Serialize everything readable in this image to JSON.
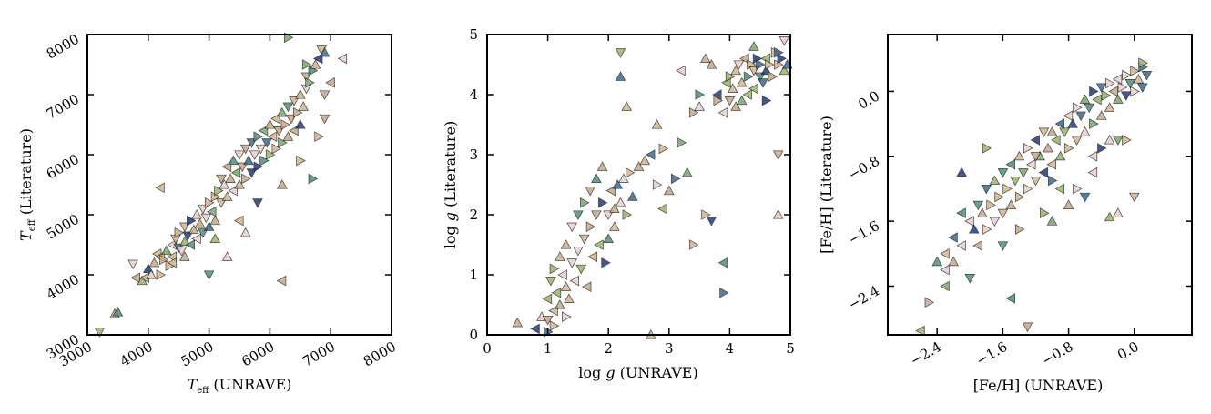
{
  "palette": [
    "#d2b48c",
    "#c7a986",
    "#e8cfc8",
    "#9bb56b",
    "#7aa86a",
    "#4e8f7a",
    "#3a6a8f",
    "#223a78"
  ],
  "chart_data": [
    {
      "type": "scatter",
      "xlabel": "T_eff (UNRAVE)",
      "ylabel": "T_eff (Literature)",
      "xlim": [
        3000,
        8000
      ],
      "ylim": [
        3000,
        8000
      ],
      "xticks": [
        3000,
        4000,
        5000,
        6000,
        7000,
        8000
      ],
      "yticks": [
        3000,
        4000,
        5000,
        6000,
        7000,
        8000
      ],
      "xtick_labels": [
        "3000",
        "4000",
        "5000",
        "6000",
        "7000",
        "8000"
      ],
      "ytick_labels": [
        "3000",
        "4000",
        "5000",
        "6000",
        "7000",
        "8000"
      ],
      "marker": "triangle",
      "points": [
        [
          3200,
          3050
        ],
        [
          3450,
          3350
        ],
        [
          3500,
          3380
        ],
        [
          3750,
          4180
        ],
        [
          3800,
          3950
        ],
        [
          3900,
          3900
        ],
        [
          3950,
          3950
        ],
        [
          4000,
          4100
        ],
        [
          4050,
          4000
        ],
        [
          4100,
          4200
        ],
        [
          4150,
          4350
        ],
        [
          4200,
          4000
        ],
        [
          4200,
          4300
        ],
        [
          4250,
          4250
        ],
        [
          4300,
          4400
        ],
        [
          4350,
          4150
        ],
        [
          4400,
          4500
        ],
        [
          4400,
          4300
        ],
        [
          4450,
          4600
        ],
        [
          4500,
          4450
        ],
        [
          4500,
          4700
        ],
        [
          4550,
          4400
        ],
        [
          4600,
          4800
        ],
        [
          4600,
          4550
        ],
        [
          4650,
          4650
        ],
        [
          4700,
          4900
        ],
        [
          4700,
          4500
        ],
        [
          4750,
          4750
        ],
        [
          4800,
          5000
        ],
        [
          4800,
          4600
        ],
        [
          4850,
          4850
        ],
        [
          4900,
          5100
        ],
        [
          4900,
          4700
        ],
        [
          4950,
          4950
        ],
        [
          5000,
          5200
        ],
        [
          5000,
          4800
        ],
        [
          5050,
          5050
        ],
        [
          5100,
          5300
        ],
        [
          5100,
          4900
        ],
        [
          5150,
          5400
        ],
        [
          5200,
          5200
        ],
        [
          5200,
          5600
        ],
        [
          5250,
          5500
        ],
        [
          5300,
          5300
        ],
        [
          5300,
          5800
        ],
        [
          5350,
          5600
        ],
        [
          5400,
          5900
        ],
        [
          5400,
          5400
        ],
        [
          5450,
          5700
        ],
        [
          5500,
          6000
        ],
        [
          5500,
          5500
        ],
        [
          5550,
          5800
        ],
        [
          5600,
          6100
        ],
        [
          5600,
          5600
        ],
        [
          5650,
          5900
        ],
        [
          5700,
          6200
        ],
        [
          5700,
          5700
        ],
        [
          5750,
          6000
        ],
        [
          5800,
          6300
        ],
        [
          5800,
          5800
        ],
        [
          5850,
          6100
        ],
        [
          5900,
          6400
        ],
        [
          5900,
          5900
        ],
        [
          5950,
          6200
        ],
        [
          6000,
          6500
        ],
        [
          6000,
          6000
        ],
        [
          6050,
          6300
        ],
        [
          6100,
          6600
        ],
        [
          6100,
          6100
        ],
        [
          6150,
          6400
        ],
        [
          6200,
          6700
        ],
        [
          6200,
          6200
        ],
        [
          6250,
          6500
        ],
        [
          6300,
          6800
        ],
        [
          6300,
          6300
        ],
        [
          6350,
          6600
        ],
        [
          6400,
          6900
        ],
        [
          6400,
          6400
        ],
        [
          6450,
          6700
        ],
        [
          6500,
          7000
        ],
        [
          6500,
          6500
        ],
        [
          6550,
          6800
        ],
        [
          6600,
          7100
        ],
        [
          6600,
          7300
        ],
        [
          6650,
          7200
        ],
        [
          6700,
          7400
        ],
        [
          6750,
          7500
        ],
        [
          6800,
          7600
        ],
        [
          6850,
          7750
        ],
        [
          6900,
          7700
        ],
        [
          6300,
          7950
        ],
        [
          7200,
          7600
        ],
        [
          6600,
          7500
        ],
        [
          5000,
          4000
        ],
        [
          5600,
          4700
        ],
        [
          6200,
          3900
        ],
        [
          4200,
          5450
        ],
        [
          5300,
          4300
        ],
        [
          6700,
          5600
        ],
        [
          6800,
          6300
        ],
        [
          6500,
          5900
        ],
        [
          6200,
          5500
        ],
        [
          5800,
          5200
        ],
        [
          5500,
          4900
        ],
        [
          6900,
          6600
        ],
        [
          6900,
          7000
        ],
        [
          7000,
          7200
        ],
        [
          4400,
          4200
        ],
        [
          4600,
          4300
        ],
        [
          5100,
          4600
        ]
      ]
    },
    {
      "type": "scatter",
      "xlabel": "log g (UNRAVE)",
      "ylabel": "log g (Literature)",
      "xlim": [
        0,
        5
      ],
      "ylim": [
        0,
        5
      ],
      "xticks": [
        0,
        1,
        2,
        3,
        4,
        5
      ],
      "yticks": [
        0,
        1,
        2,
        3,
        4,
        5
      ],
      "xtick_labels": [
        "0",
        "1",
        "2",
        "3",
        "4",
        "5"
      ],
      "ytick_labels": [
        "0",
        "1",
        "2",
        "3",
        "4",
        "5"
      ],
      "marker": "triangle",
      "points": [
        [
          0.5,
          0.2
        ],
        [
          0.8,
          0.1
        ],
        [
          0.9,
          0.3
        ],
        [
          1.0,
          0.05
        ],
        [
          1.0,
          0.6
        ],
        [
          1.05,
          0.9
        ],
        [
          1.1,
          0.4
        ],
        [
          1.1,
          1.1
        ],
        [
          1.15,
          0.7
        ],
        [
          1.2,
          1.3
        ],
        [
          1.2,
          0.5
        ],
        [
          1.25,
          1.0
        ],
        [
          1.3,
          0.8
        ],
        [
          1.3,
          1.5
        ],
        [
          1.35,
          0.6
        ],
        [
          1.4,
          1.2
        ],
        [
          1.4,
          1.8
        ],
        [
          1.45,
          0.9
        ],
        [
          1.5,
          1.4
        ],
        [
          1.5,
          2.0
        ],
        [
          1.55,
          1.1
        ],
        [
          1.6,
          1.6
        ],
        [
          1.6,
          2.2
        ],
        [
          1.65,
          0.8
        ],
        [
          1.7,
          1.8
        ],
        [
          1.7,
          2.4
        ],
        [
          1.75,
          1.3
        ],
        [
          1.8,
          2.0
        ],
        [
          1.8,
          2.6
        ],
        [
          1.85,
          1.5
        ],
        [
          1.9,
          2.2
        ],
        [
          1.9,
          2.8
        ],
        [
          1.95,
          1.2
        ],
        [
          2.0,
          2.0
        ],
        [
          2.0,
          1.6
        ],
        [
          2.05,
          2.4
        ],
        [
          2.1,
          2.1
        ],
        [
          2.1,
          1.8
        ],
        [
          2.15,
          2.5
        ],
        [
          2.2,
          2.2
        ],
        [
          2.2,
          4.3
        ],
        [
          2.2,
          4.7
        ],
        [
          2.25,
          2.6
        ],
        [
          2.3,
          2.0
        ],
        [
          2.3,
          3.8
        ],
        [
          2.35,
          2.7
        ],
        [
          2.4,
          2.3
        ],
        [
          2.5,
          2.8
        ],
        [
          2.6,
          2.9
        ],
        [
          2.7,
          3.0
        ],
        [
          2.8,
          2.5
        ],
        [
          2.9,
          2.1
        ],
        [
          3.0,
          2.4
        ],
        [
          3.1,
          2.6
        ],
        [
          3.2,
          3.2
        ],
        [
          3.3,
          2.7
        ],
        [
          3.4,
          3.7
        ],
        [
          3.5,
          3.8
        ],
        [
          3.6,
          2.0
        ],
        [
          3.7,
          1.9
        ],
        [
          3.8,
          3.9
        ],
        [
          3.8,
          4.0
        ],
        [
          3.9,
          3.7
        ],
        [
          3.9,
          0.7
        ],
        [
          3.95,
          4.2
        ],
        [
          4.0,
          4.3
        ],
        [
          4.0,
          3.9
        ],
        [
          4.05,
          4.1
        ],
        [
          4.1,
          4.4
        ],
        [
          4.1,
          3.8
        ],
        [
          4.15,
          4.5
        ],
        [
          4.2,
          4.2
        ],
        [
          4.2,
          3.9
        ],
        [
          4.25,
          4.6
        ],
        [
          4.3,
          4.3
        ],
        [
          4.3,
          4.0
        ],
        [
          4.35,
          4.5
        ],
        [
          4.4,
          4.4
        ],
        [
          4.4,
          4.1
        ],
        [
          4.45,
          4.6
        ],
        [
          4.5,
          4.3
        ],
        [
          4.5,
          4.5
        ],
        [
          4.55,
          4.2
        ],
        [
          4.6,
          4.6
        ],
        [
          4.6,
          4.4
        ],
        [
          4.65,
          4.5
        ],
        [
          4.7,
          4.3
        ],
        [
          4.75,
          4.7
        ],
        [
          4.8,
          4.5
        ],
        [
          4.85,
          4.6
        ],
        [
          4.9,
          4.9
        ],
        [
          4.9,
          4.4
        ],
        [
          4.95,
          4.5
        ],
        [
          3.7,
          4.5
        ],
        [
          3.6,
          4.6
        ],
        [
          3.5,
          4.0
        ],
        [
          2.9,
          3.1
        ],
        [
          2.8,
          3.5
        ],
        [
          4.8,
          3.0
        ],
        [
          4.8,
          2.0
        ],
        [
          1.0,
          0.25
        ],
        [
          1.1,
          0.15
        ],
        [
          1.3,
          0.3
        ],
        [
          2.7,
          0.0
        ],
        [
          3.9,
          1.2
        ],
        [
          3.4,
          1.5
        ],
        [
          3.2,
          4.4
        ],
        [
          4.8,
          4.7
        ],
        [
          4.4,
          4.8
        ],
        [
          4.6,
          3.9
        ]
      ]
    },
    {
      "type": "scatter",
      "xlabel": "[Fe/H] (UNRAVE)",
      "ylabel": "[Fe/H] (Literature)",
      "xlim": [
        -3.0,
        0.7
      ],
      "ylim": [
        -3.0,
        0.7
      ],
      "xticks": [
        -2.4,
        -1.6,
        -0.8,
        0.0
      ],
      "yticks": [
        -2.4,
        -1.6,
        -0.8,
        0.0
      ],
      "xtick_labels": [
        "−2.4",
        "−1.6",
        "−0.8",
        "0.0"
      ],
      "ytick_labels": [
        "−2.4",
        "−1.6",
        "−0.8",
        "0.0"
      ],
      "marker": "triangle",
      "points": [
        [
          -2.6,
          -2.95
        ],
        [
          -2.5,
          -2.6
        ],
        [
          -2.3,
          -2.2
        ],
        [
          -2.3,
          -2.0
        ],
        [
          -2.2,
          -2.1
        ],
        [
          -2.2,
          -1.8
        ],
        [
          -2.1,
          -1.9
        ],
        [
          -2.1,
          -1.5
        ],
        [
          -2.0,
          -1.6
        ],
        [
          -2.0,
          -2.3
        ],
        [
          -1.95,
          -1.7
        ],
        [
          -1.9,
          -1.4
        ],
        [
          -1.9,
          -1.9
        ],
        [
          -1.85,
          -1.5
        ],
        [
          -1.8,
          -1.2
        ],
        [
          -1.8,
          -1.7
        ],
        [
          -1.75,
          -1.4
        ],
        [
          -1.7,
          -1.1
        ],
        [
          -1.7,
          -1.6
        ],
        [
          -1.65,
          -1.3
        ],
        [
          -1.6,
          -1.0
        ],
        [
          -1.6,
          -1.5
        ],
        [
          -1.55,
          -1.2
        ],
        [
          -1.5,
          -0.9
        ],
        [
          -1.5,
          -1.4
        ],
        [
          -1.45,
          -1.1
        ],
        [
          -1.4,
          -0.8
        ],
        [
          -1.4,
          -1.3
        ],
        [
          -1.35,
          -1.0
        ],
        [
          -1.3,
          -0.7
        ],
        [
          -1.3,
          -1.2
        ],
        [
          -1.25,
          -0.9
        ],
        [
          -1.2,
          -0.6
        ],
        [
          -1.2,
          -1.1
        ],
        [
          -1.15,
          -0.8
        ],
        [
          -1.1,
          -0.5
        ],
        [
          -1.1,
          -1.0
        ],
        [
          -1.05,
          -0.7
        ],
        [
          -1.0,
          -0.5
        ],
        [
          -1.0,
          -0.9
        ],
        [
          -0.95,
          -0.6
        ],
        [
          -0.9,
          -0.4
        ],
        [
          -0.9,
          -0.8
        ],
        [
          -0.85,
          -0.5
        ],
        [
          -0.8,
          -0.3
        ],
        [
          -0.8,
          -0.7
        ],
        [
          -0.75,
          -0.4
        ],
        [
          -0.7,
          -0.2
        ],
        [
          -0.7,
          -0.6
        ],
        [
          -0.65,
          -0.3
        ],
        [
          -0.6,
          -0.1
        ],
        [
          -0.6,
          -0.5
        ],
        [
          -0.55,
          -0.2
        ],
        [
          -0.5,
          0.0
        ],
        [
          -0.5,
          -0.4
        ],
        [
          -0.45,
          -0.1
        ],
        [
          -0.4,
          0.05
        ],
        [
          -0.4,
          -0.3
        ],
        [
          -0.35,
          -0.05
        ],
        [
          -0.3,
          0.1
        ],
        [
          -0.3,
          -0.2
        ],
        [
          -0.25,
          0.0
        ],
        [
          -0.2,
          0.15
        ],
        [
          -0.2,
          -0.1
        ],
        [
          -0.15,
          0.05
        ],
        [
          -0.1,
          0.2
        ],
        [
          -0.1,
          -0.05
        ],
        [
          -0.05,
          0.1
        ],
        [
          0.0,
          0.25
        ],
        [
          0.0,
          0.0
        ],
        [
          0.05,
          0.15
        ],
        [
          0.1,
          0.3
        ],
        [
          0.1,
          0.05
        ],
        [
          0.15,
          0.2
        ],
        [
          0.1,
          0.35
        ],
        [
          -2.3,
          -2.4
        ],
        [
          -2.4,
          -2.1
        ],
        [
          -1.5,
          -2.55
        ],
        [
          -1.3,
          -2.9
        ],
        [
          -2.1,
          -1.0
        ],
        [
          -1.8,
          -0.7
        ],
        [
          -1.2,
          -0.8
        ],
        [
          -0.2,
          -1.5
        ],
        [
          -0.3,
          -1.55
        ],
        [
          0.0,
          -1.3
        ],
        [
          -0.5,
          -0.8
        ],
        [
          -0.4,
          -0.7
        ],
        [
          -0.3,
          -0.6
        ],
        [
          -0.1,
          -0.6
        ],
        [
          -1.0,
          -1.1
        ],
        [
          -0.8,
          -1.4
        ],
        [
          -0.6,
          -1.3
        ],
        [
          -0.5,
          -1.0
        ],
        [
          -0.9,
          -1.2
        ],
        [
          -1.1,
          -1.5
        ],
        [
          -0.2,
          -0.6
        ],
        [
          -0.7,
          -1.2
        ],
        [
          -1.4,
          -1.7
        ],
        [
          -1.6,
          -1.9
        ],
        [
          -1.0,
          -1.6
        ]
      ]
    }
  ]
}
